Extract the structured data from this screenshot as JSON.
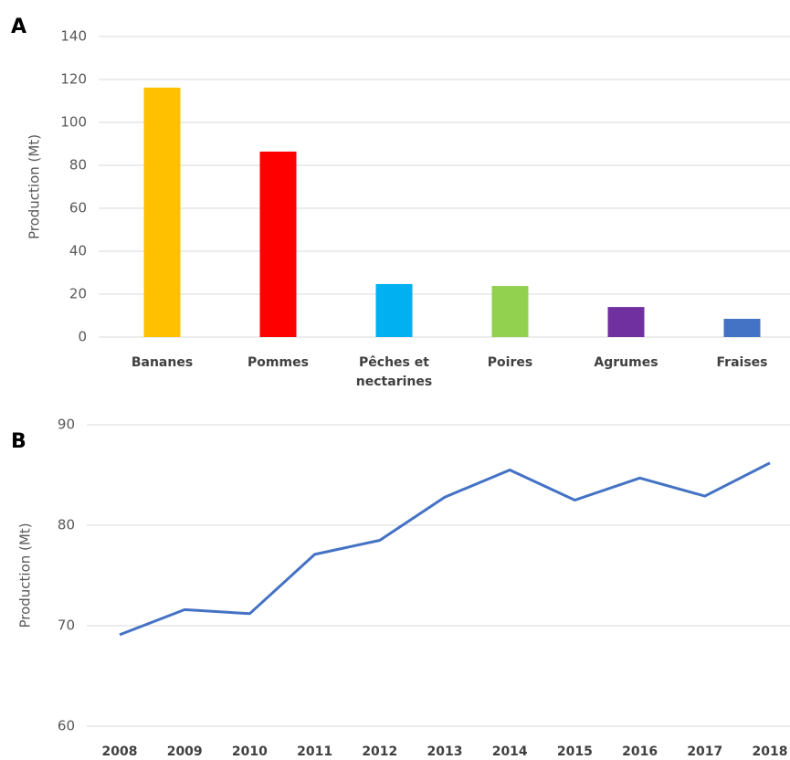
{
  "chart_data": [
    {
      "type": "bar",
      "label": "A",
      "ylabel": "Production (Mt)",
      "categories": [
        "Bananes",
        "Pommes",
        "Pêches et\nnectarines",
        "Poires",
        "Agrumes",
        "Fraises"
      ],
      "values": [
        116.2,
        86.4,
        24.7,
        23.8,
        14.0,
        8.5
      ],
      "colors": [
        "#FFC000",
        "#FF0000",
        "#00B0F0",
        "#92D050",
        "#7030A0",
        "#4472C4"
      ],
      "ylim": [
        0,
        140
      ],
      "yticks": [
        0,
        20,
        40,
        60,
        80,
        100,
        120,
        140
      ],
      "grid": true
    },
    {
      "type": "line",
      "label": "B",
      "ylabel": "Production (Mt)",
      "categories": [
        "2008",
        "2009",
        "2010",
        "2011",
        "2012",
        "2013",
        "2014",
        "2015",
        "2016",
        "2017",
        "2018"
      ],
      "series": [
        {
          "color": "#4472C4",
          "values": [
            69.1,
            71.6,
            71.2,
            77.1,
            78.5,
            82.8,
            85.5,
            82.5,
            84.7,
            82.9,
            86.2
          ]
        }
      ],
      "ylim": [
        60,
        90
      ],
      "yticks": [
        60,
        70,
        80,
        90
      ],
      "grid": true
    }
  ]
}
